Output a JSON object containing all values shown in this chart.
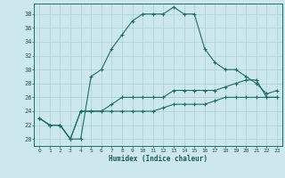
{
  "xlabel": "Humidex (Indice chaleur)",
  "background_color": "#cce8ec",
  "grid_color": "#aacdd4",
  "line_color": "#1a6e6a",
  "x_ticks": [
    0,
    1,
    2,
    3,
    4,
    5,
    6,
    7,
    8,
    9,
    10,
    11,
    12,
    13,
    14,
    15,
    16,
    17,
    18,
    19,
    20,
    21,
    22,
    23
  ],
  "y_ticks": [
    20,
    22,
    24,
    26,
    28,
    30,
    32,
    34,
    36,
    38
  ],
  "ylim": [
    19.0,
    39.5
  ],
  "xlim": [
    -0.5,
    23.5
  ],
  "line1_x": [
    0,
    1,
    2,
    3,
    4,
    5,
    6,
    7,
    8,
    9,
    10,
    11,
    12,
    13,
    14,
    15,
    16,
    17,
    18,
    19,
    20,
    21,
    22,
    23
  ],
  "line1_y": [
    23,
    22,
    22,
    20,
    20,
    29,
    30,
    33,
    35,
    37,
    38,
    38,
    38,
    39,
    38,
    38,
    33,
    31,
    30,
    30,
    29,
    28,
    26.5,
    27
  ],
  "line2_x": [
    0,
    1,
    2,
    3,
    4,
    5,
    6,
    7,
    8,
    9,
    10,
    11,
    12,
    13,
    14,
    15,
    16,
    17,
    18,
    19,
    20,
    21,
    22,
    23
  ],
  "line2_y": [
    23,
    22,
    22,
    20,
    24,
    24,
    24,
    25,
    26,
    26,
    26,
    26,
    26,
    27,
    27,
    27,
    27,
    27,
    27.5,
    28,
    28.5,
    28.5,
    26,
    26
  ],
  "line3_x": [
    0,
    1,
    2,
    3,
    4,
    5,
    6,
    7,
    8,
    9,
    10,
    11,
    12,
    13,
    14,
    15,
    16,
    17,
    18,
    19,
    20,
    21,
    22,
    23
  ],
  "line3_y": [
    23,
    22,
    22,
    20,
    24,
    24,
    24,
    24,
    24,
    24,
    24,
    24,
    24.5,
    25,
    25,
    25,
    25,
    25.5,
    26,
    26,
    26,
    26,
    26,
    26
  ]
}
